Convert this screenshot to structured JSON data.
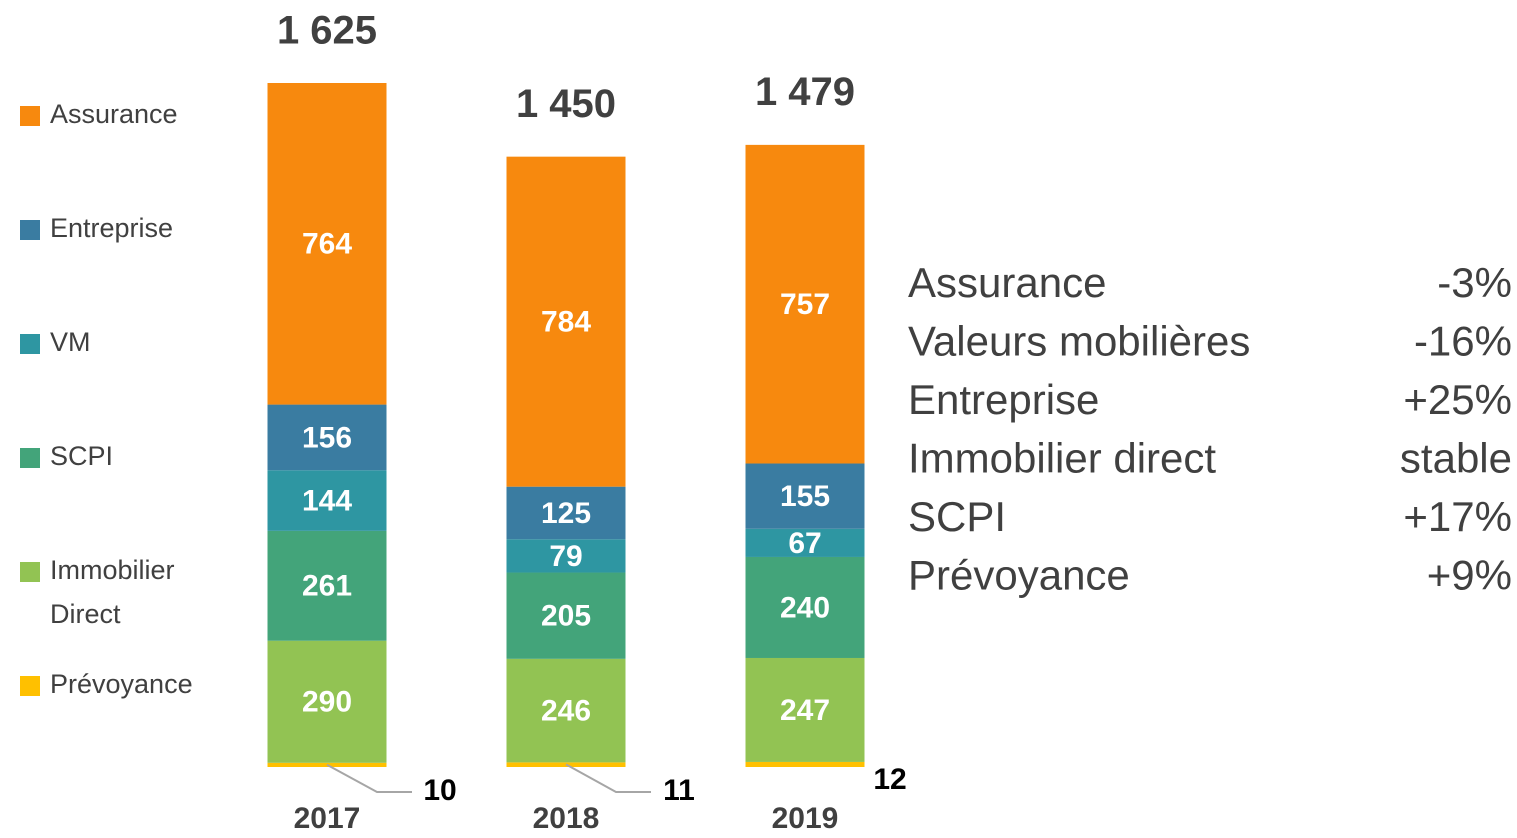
{
  "chart_data": {
    "type": "stacked_bar",
    "categories": [
      "2017",
      "2018",
      "2019"
    ],
    "series": [
      {
        "name": "Prévoyance",
        "color": "#ffc000",
        "values": [
          10,
          11,
          12
        ]
      },
      {
        "name": "Immobilier Direct",
        "color": "#92c353",
        "values": [
          290,
          246,
          247
        ]
      },
      {
        "name": "SCPI",
        "color": "#43a47a",
        "values": [
          261,
          205,
          240
        ]
      },
      {
        "name": "VM",
        "color": "#2e96a2",
        "values": [
          144,
          79,
          67
        ]
      },
      {
        "name": "Entreprise",
        "color": "#3a7ca1",
        "values": [
          156,
          125,
          155
        ]
      },
      {
        "name": "Assurance",
        "color": "#f7890e",
        "values": [
          764,
          784,
          757
        ]
      }
    ],
    "totals": {
      "values": [
        1625,
        1450,
        1479
      ],
      "value_labels": [
        "1 625",
        "1 450",
        "1 479"
      ]
    },
    "annotations": [
      {
        "label": "Assurance",
        "value": "-3%"
      },
      {
        "label": "Valeurs mobilières",
        "value": "-16%"
      },
      {
        "label": "Entreprise",
        "value": "+25%"
      },
      {
        "label": "Immobilier direct",
        "value": "stable"
      },
      {
        "label": "SCPI",
        "value": "+17%"
      },
      {
        "label": "Prévoyance",
        "value": "+9%"
      }
    ]
  }
}
